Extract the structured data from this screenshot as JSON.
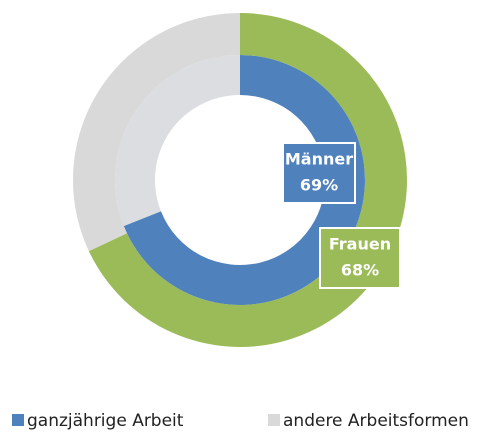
{
  "chart_data": {
    "type": "donut",
    "categories": [
      "ganzjährige Arbeit",
      "andere Arbeitsformen"
    ],
    "legend_colors": [
      "#4f81bd",
      "#d9d9d9"
    ],
    "series": [
      {
        "name": "Männer",
        "values": [
          69,
          31
        ],
        "colors": [
          "#4f81bd",
          "#dcdde0"
        ],
        "value_label": "69%"
      },
      {
        "name": "Frauen",
        "values": [
          68,
          32
        ],
        "colors": [
          "#9bbb59",
          "#d9d9d9"
        ],
        "value_label": "68%"
      }
    ]
  }
}
